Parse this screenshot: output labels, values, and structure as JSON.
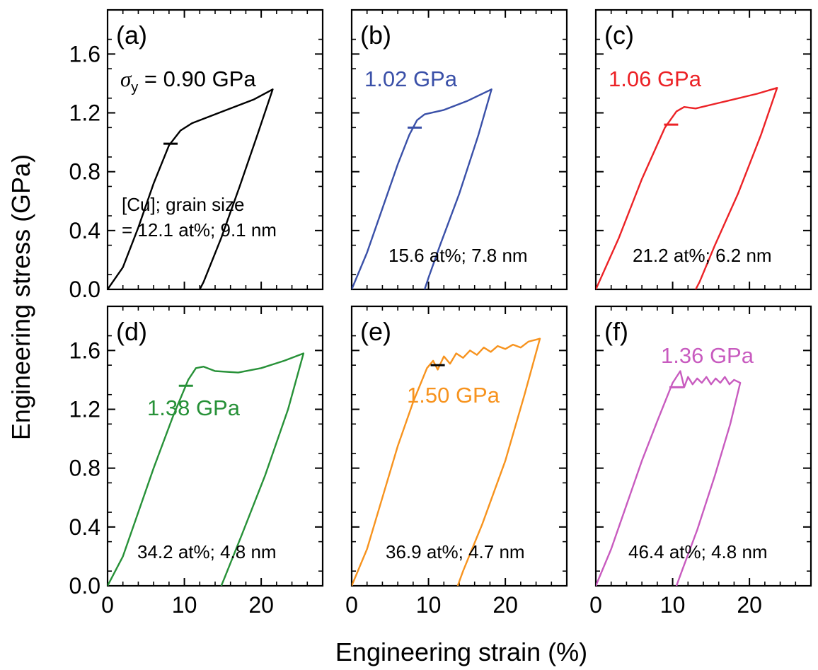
{
  "figure": {
    "ylabel": "Engineering stress (GPa)",
    "xlabel": "Engineering strain (%)",
    "x_ticks": [
      "0",
      "10",
      "20"
    ],
    "y_ticks": [
      "0.0",
      "0.4",
      "0.8",
      "1.2",
      "1.6"
    ]
  },
  "chart_data": [
    {
      "type": "line",
      "panel_label": "(a)",
      "color": "#000000",
      "yield_prefix": "σ",
      "yield_subscript": "y",
      "yield_label": " = 0.90 GPa",
      "notes": [
        "[Cu]; grain size",
        "= 12.1 at%; 9.1 nm"
      ],
      "xlim": [
        0,
        28
      ],
      "ylim": [
        0,
        1.9
      ],
      "xticks": [
        0,
        10,
        20
      ],
      "yticks": [
        0,
        0.4,
        0.8,
        1.2,
        1.6
      ],
      "yield_marker": {
        "x": 8.2,
        "y": 0.99
      },
      "series": [
        {
          "values_xy": [
            [
              0,
              0
            ],
            [
              2,
              0.15
            ],
            [
              4,
              0.42
            ],
            [
              6,
              0.72
            ],
            [
              8,
              0.98
            ],
            [
              9.5,
              1.08
            ],
            [
              11,
              1.13
            ],
            [
              15,
              1.21
            ],
            [
              19,
              1.29
            ],
            [
              21.5,
              1.36
            ],
            [
              19.5,
              1.05
            ],
            [
              17.2,
              0.7
            ],
            [
              14.8,
              0.35
            ],
            [
              12.5,
              0.05
            ],
            [
              12,
              0
            ]
          ]
        }
      ]
    },
    {
      "type": "line",
      "panel_label": "(b)",
      "color": "#3a50a8",
      "yield_label": "1.02 GPa",
      "notes": [
        "15.6 at%; 7.8 nm"
      ],
      "xlim": [
        0,
        28
      ],
      "ylim": [
        0,
        1.9
      ],
      "xticks": [
        0,
        10,
        20
      ],
      "yticks": [
        0,
        0.4,
        0.8,
        1.2,
        1.6
      ],
      "yield_marker": {
        "x": 8.2,
        "y": 1.1
      },
      "series": [
        {
          "values_xy": [
            [
              0,
              0
            ],
            [
              2,
              0.25
            ],
            [
              4,
              0.55
            ],
            [
              6,
              0.85
            ],
            [
              7.5,
              1.05
            ],
            [
              8.5,
              1.15
            ],
            [
              9.5,
              1.19
            ],
            [
              12,
              1.22
            ],
            [
              15,
              1.28
            ],
            [
              18.2,
              1.36
            ],
            [
              16.5,
              1.05
            ],
            [
              14,
              0.65
            ],
            [
              11.5,
              0.3
            ],
            [
              10,
              0.08
            ],
            [
              9.5,
              0
            ]
          ]
        }
      ]
    },
    {
      "type": "line",
      "panel_label": "(c)",
      "color": "#ec2226",
      "yield_label": "1.06 GPa",
      "notes": [
        "21.2 at%; 6.2 nm"
      ],
      "xlim": [
        0,
        28
      ],
      "ylim": [
        0,
        1.9
      ],
      "xticks": [
        0,
        10,
        20
      ],
      "yticks": [
        0,
        0.4,
        0.8,
        1.2,
        1.6
      ],
      "yield_marker": {
        "x": 9.8,
        "y": 1.12
      },
      "series": [
        {
          "values_xy": [
            [
              0,
              0
            ],
            [
              3,
              0.35
            ],
            [
              6,
              0.75
            ],
            [
              9,
              1.1
            ],
            [
              10.5,
              1.21
            ],
            [
              11.5,
              1.24
            ],
            [
              13,
              1.23
            ],
            [
              17,
              1.28
            ],
            [
              21,
              1.33
            ],
            [
              23.6,
              1.37
            ],
            [
              21.5,
              1.05
            ],
            [
              18.5,
              0.65
            ],
            [
              15.5,
              0.3
            ],
            [
              13.5,
              0.05
            ],
            [
              13,
              0
            ]
          ]
        }
      ]
    },
    {
      "type": "line",
      "panel_label": "(d)",
      "color": "#279138",
      "yield_label": "1.38 GPa",
      "notes": [
        "34.2 at%; 4.8 nm"
      ],
      "xlim": [
        0,
        28
      ],
      "ylim": [
        0,
        1.9
      ],
      "xticks": [
        0,
        10,
        20
      ],
      "yticks": [
        0,
        0.4,
        0.8,
        1.2,
        1.6
      ],
      "yield_marker": {
        "x": 10.2,
        "y": 1.36
      },
      "series": [
        {
          "values_xy": [
            [
              0,
              0
            ],
            [
              2,
              0.2
            ],
            [
              4,
              0.5
            ],
            [
              6,
              0.8
            ],
            [
              8.5,
              1.15
            ],
            [
              10.5,
              1.4
            ],
            [
              11.5,
              1.48
            ],
            [
              12.5,
              1.49
            ],
            [
              14,
              1.46
            ],
            [
              17,
              1.45
            ],
            [
              20,
              1.48
            ],
            [
              23,
              1.53
            ],
            [
              25.5,
              1.58
            ],
            [
              23.5,
              1.2
            ],
            [
              20.5,
              0.75
            ],
            [
              17.5,
              0.35
            ],
            [
              15.2,
              0.05
            ],
            [
              14.8,
              0
            ]
          ]
        }
      ]
    },
    {
      "type": "line",
      "panel_label": "(e)",
      "color": "#f7931e",
      "yield_label": "1.50 GPa",
      "notes": [
        "36.9 at%; 4.7 nm"
      ],
      "xlim": [
        0,
        28
      ],
      "ylim": [
        0,
        1.9
      ],
      "xticks": [
        0,
        10,
        20
      ],
      "yticks": [
        0,
        0.4,
        0.8,
        1.2,
        1.6
      ],
      "yield_marker": {
        "x": 11.2,
        "y": 1.5
      },
      "series": [
        {
          "values_xy": [
            [
              0,
              0
            ],
            [
              2,
              0.25
            ],
            [
              4,
              0.6
            ],
            [
              6,
              0.95
            ],
            [
              8,
              1.25
            ],
            [
              9.8,
              1.48
            ],
            [
              10.6,
              1.53
            ],
            [
              11.2,
              1.47
            ],
            [
              12,
              1.56
            ],
            [
              12.8,
              1.51
            ],
            [
              13.6,
              1.58
            ],
            [
              14.5,
              1.55
            ],
            [
              15.4,
              1.6
            ],
            [
              16.3,
              1.57
            ],
            [
              17.2,
              1.62
            ],
            [
              18.1,
              1.59
            ],
            [
              19,
              1.63
            ],
            [
              20,
              1.61
            ],
            [
              21,
              1.64
            ],
            [
              22,
              1.62
            ],
            [
              23,
              1.66
            ],
            [
              24.5,
              1.68
            ],
            [
              22.5,
              1.3
            ],
            [
              20,
              0.85
            ],
            [
              17,
              0.42
            ],
            [
              14.5,
              0.1
            ],
            [
              13.8,
              0
            ]
          ]
        }
      ]
    },
    {
      "type": "line",
      "panel_label": "(f)",
      "color": "#c85bbf",
      "yield_label": "1.36 GPa",
      "notes": [
        "46.4 at%; 4.8 nm"
      ],
      "xlim": [
        0,
        28
      ],
      "ylim": [
        0,
        1.9
      ],
      "xticks": [
        0,
        10,
        20
      ],
      "yticks": [
        0,
        0.4,
        0.8,
        1.2,
        1.6
      ],
      "yield_marker": {
        "x": 10.5,
        "y": 1.35
      },
      "series": [
        {
          "values_xy": [
            [
              0,
              0
            ],
            [
              2,
              0.25
            ],
            [
              4,
              0.55
            ],
            [
              6,
              0.85
            ],
            [
              8,
              1.12
            ],
            [
              10,
              1.38
            ],
            [
              11,
              1.46
            ],
            [
              11.5,
              1.35
            ],
            [
              12,
              1.42
            ],
            [
              12.6,
              1.37
            ],
            [
              13.2,
              1.41
            ],
            [
              13.8,
              1.38
            ],
            [
              14.4,
              1.42
            ],
            [
              15,
              1.37
            ],
            [
              15.6,
              1.41
            ],
            [
              16.2,
              1.38
            ],
            [
              16.8,
              1.42
            ],
            [
              17.4,
              1.37
            ],
            [
              18,
              1.4
            ],
            [
              18.8,
              1.38
            ],
            [
              17.5,
              1.1
            ],
            [
              15.5,
              0.75
            ],
            [
              13.2,
              0.38
            ],
            [
              11.2,
              0.1
            ],
            [
              10.5,
              0
            ]
          ]
        }
      ]
    }
  ]
}
